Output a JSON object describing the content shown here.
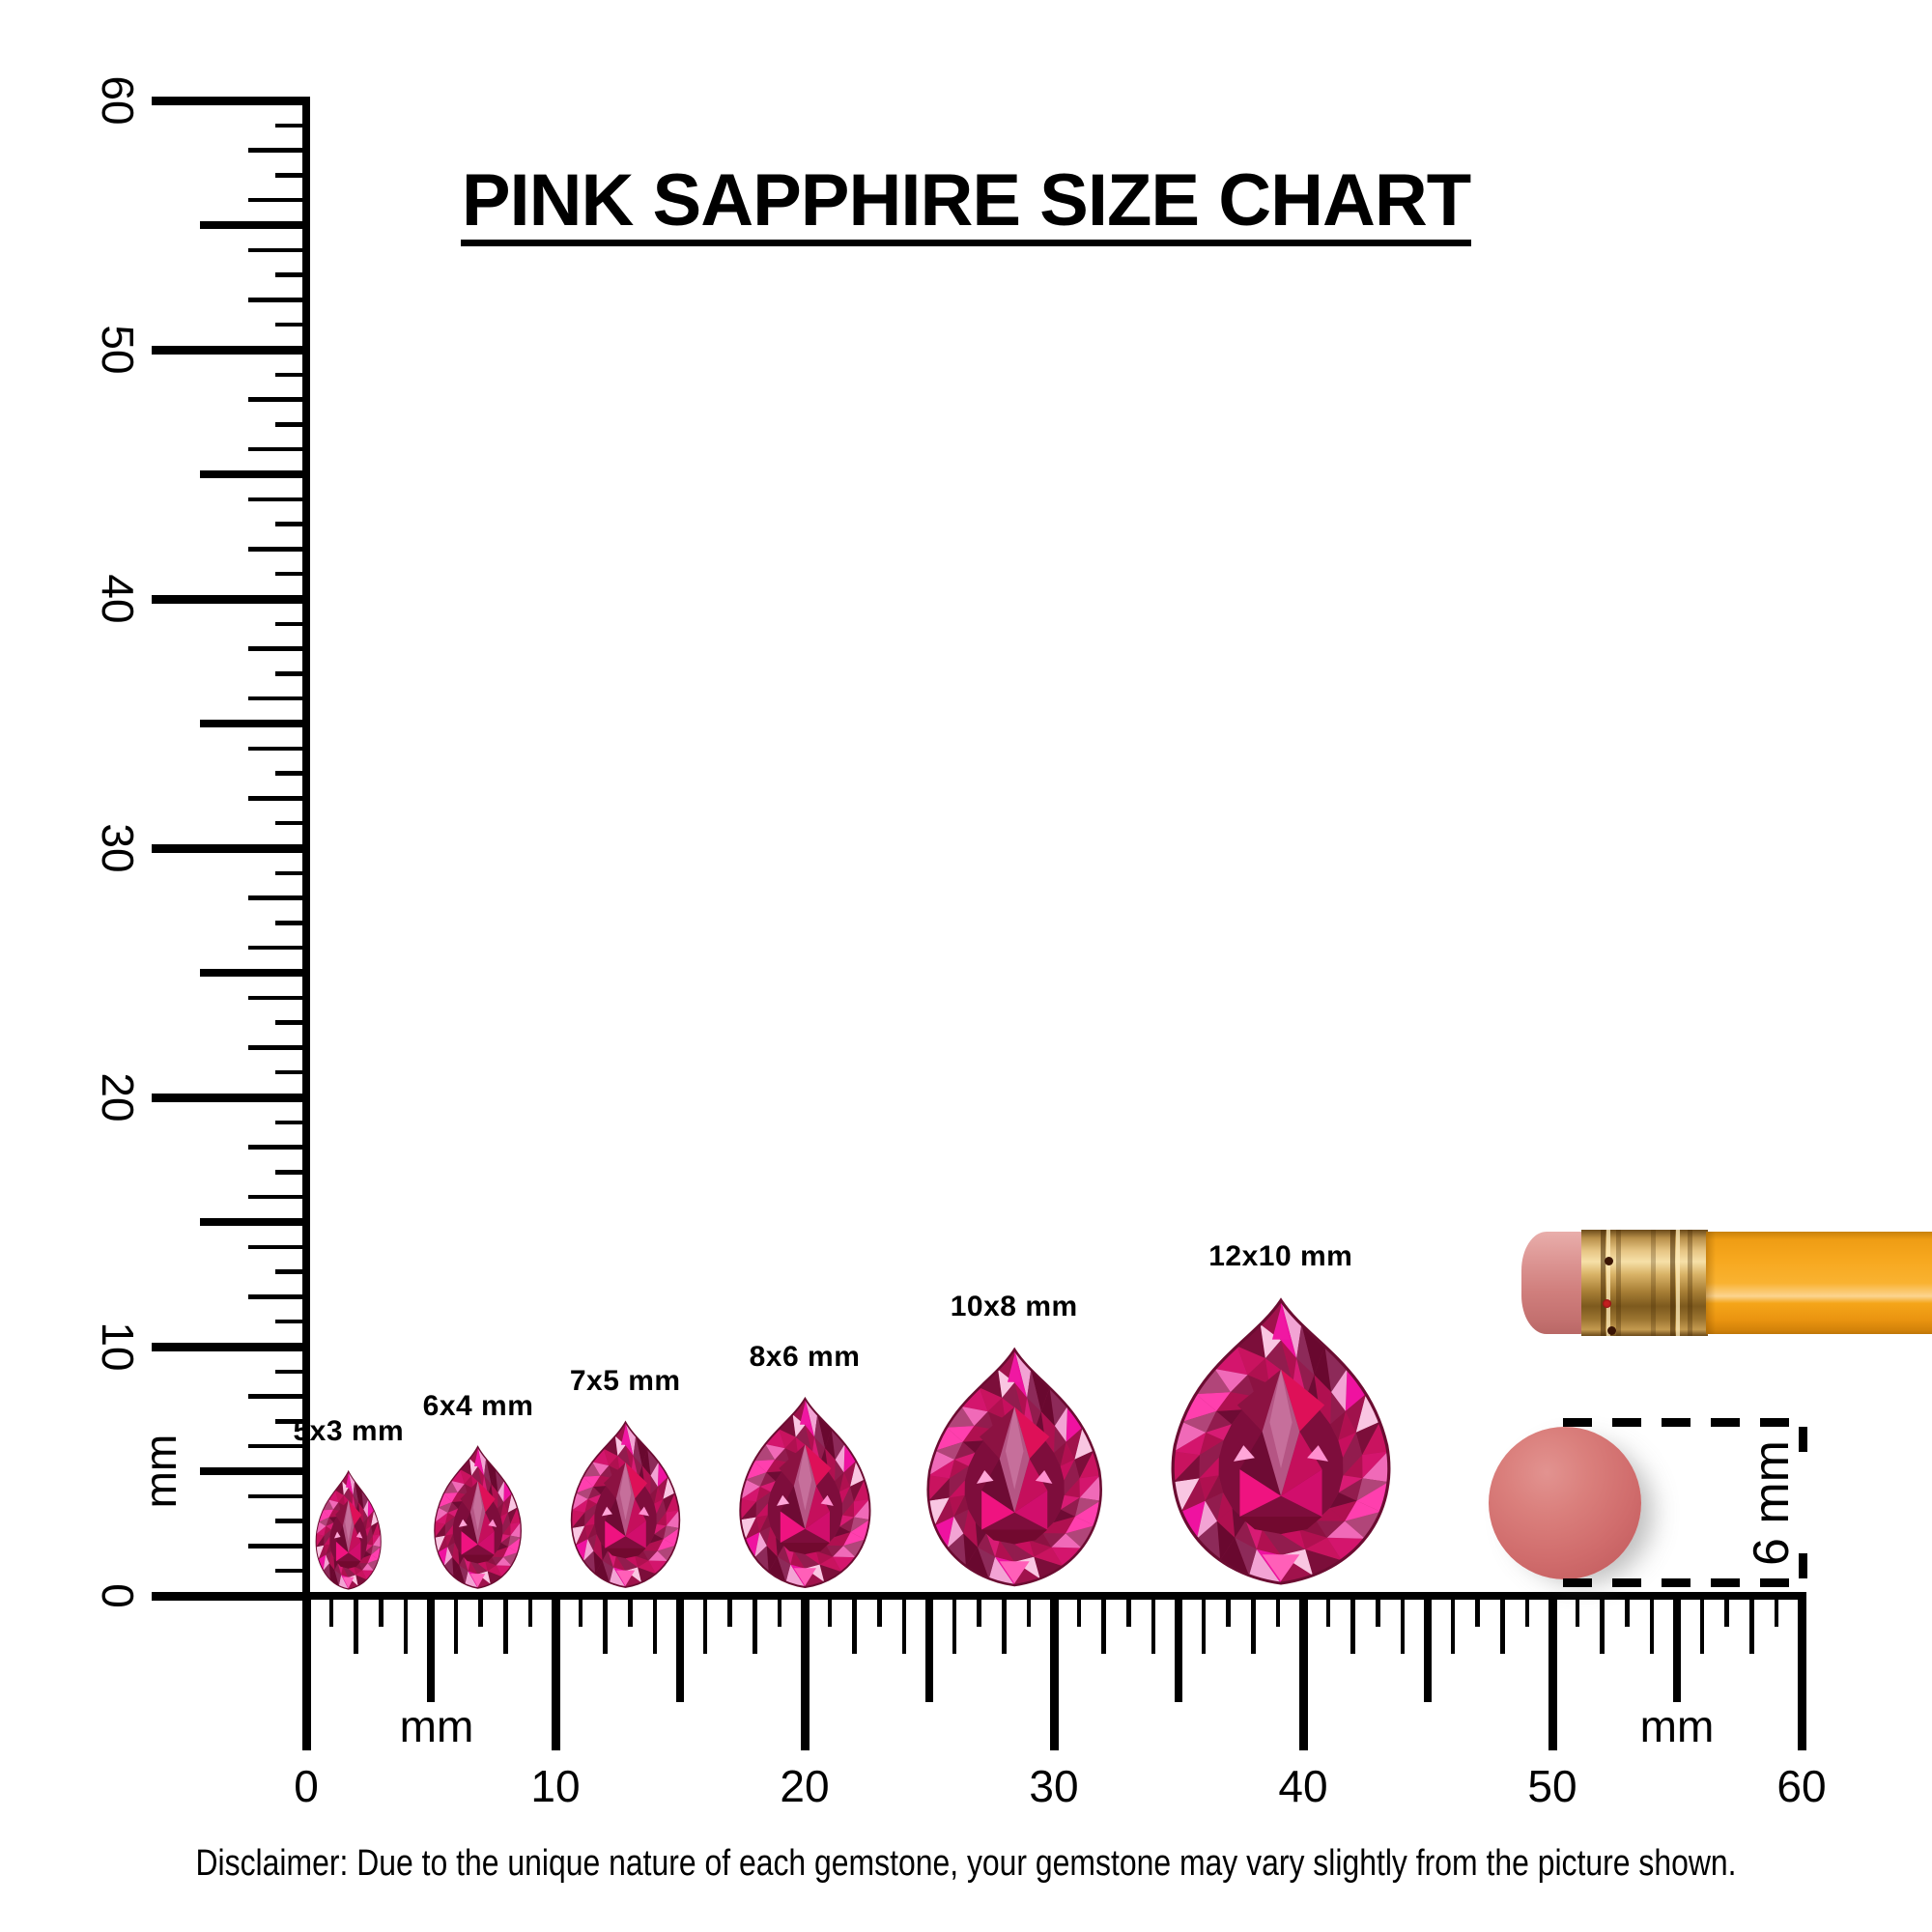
{
  "title": {
    "text": "PINK SAPPHIRE SIZE CHART"
  },
  "rulers": {
    "unit": "mm",
    "min_mm": 0,
    "max_mm": 60,
    "major_step_mm": 10,
    "major_labels": [
      "0",
      "10",
      "20",
      "30",
      "40",
      "50",
      "60"
    ],
    "vertical_unit_label": "mm",
    "horizontal_unit_labels": [
      "mm",
      "mm"
    ]
  },
  "gems": [
    {
      "label": "5x3 mm",
      "length_mm": 5,
      "width_mm": 3,
      "center_mm": 1.7
    },
    {
      "label": "6x4 mm",
      "length_mm": 6,
      "width_mm": 4,
      "center_mm": 6.9
    },
    {
      "label": "7x5 mm",
      "length_mm": 7,
      "width_mm": 5,
      "center_mm": 12.8
    },
    {
      "label": "8x6 mm",
      "length_mm": 8,
      "width_mm": 6,
      "center_mm": 20.0
    },
    {
      "label": "10x8 mm",
      "length_mm": 10,
      "width_mm": 8,
      "center_mm": 28.4
    },
    {
      "label": "12x10 mm",
      "length_mm": 12,
      "width_mm": 10,
      "center_mm": 39.1
    }
  ],
  "gem_colors": {
    "base": "#9c2054",
    "core": "#7e0d3c",
    "outline": "#6b0c31",
    "kite": "#b55584",
    "kite_inner": "#c66f9b",
    "flank_left": "#8c1242",
    "flank_right": "#de1058",
    "mid_left": "#6e0b34",
    "mid_right": "#c50f5c",
    "bow_left": "#ef1380",
    "bow_right": "#d10e6c",
    "bowl": "#72092f",
    "sparkle_left": "#ffa6d8",
    "sparkle_right": "#ff8fcf",
    "apex_flash": "#f018a2",
    "tip_flash": "#ff5fb8",
    "ring": [
      "#f2a3d4",
      "#c9135f",
      "#7c0e3a",
      "#ef12a0",
      "#b14579",
      "#69082f",
      "#f06ab8",
      "#a0124c",
      "#f9c6e2",
      "#d4156d",
      "#8d2a59",
      "#ff3fae"
    ],
    "ring_inner": [
      "#8c1242",
      "#b01050",
      "#6e0b34",
      "#d81b74",
      "#921c4e",
      "#c70f5e"
    ]
  },
  "pencil": {
    "eraser_color": "#d98a88",
    "ferrule_color": "#d9b367",
    "body_color": "#f7a81f"
  },
  "reference_disc": {
    "label": "6 mm",
    "diameter_mm": 6,
    "color": "#d06c6c"
  },
  "disclaimer": {
    "text": "Disclaimer: Due to the unique nature of each gemstone, your gemstone may vary slightly from the picture shown."
  },
  "colors": {
    "ink": "#000000",
    "background": "#ffffff"
  }
}
